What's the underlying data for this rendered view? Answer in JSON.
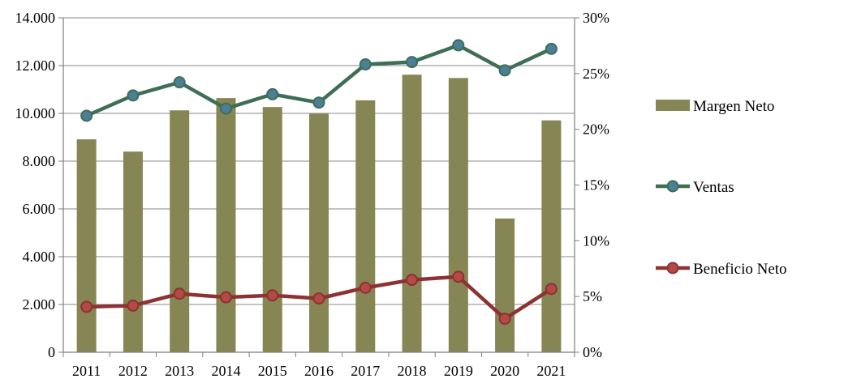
{
  "chart_data": {
    "type": "bar",
    "categories": [
      "2011",
      "2012",
      "2013",
      "2014",
      "2015",
      "2016",
      "2017",
      "2018",
      "2019",
      "2020",
      "2021"
    ],
    "title": "",
    "xlabel": "",
    "ylabel": "",
    "left_axis": {
      "ylim": [
        0,
        14000
      ],
      "ticks": [
        0,
        2000,
        4000,
        6000,
        8000,
        10000,
        12000,
        14000
      ],
      "tick_labels": [
        "0",
        "2.000",
        "4.000",
        "6.000",
        "8.000",
        "10.000",
        "12.000",
        "14.000"
      ]
    },
    "right_axis": {
      "ylim": [
        0,
        30
      ],
      "ticks": [
        0,
        5,
        10,
        15,
        20,
        25,
        30
      ],
      "tick_labels": [
        "0%",
        "5%",
        "10%",
        "15%",
        "20%",
        "25%",
        "30%"
      ]
    },
    "grid": true,
    "legend_position": "right",
    "series": [
      {
        "name": "Margen Neto",
        "type": "bar",
        "axis": "right",
        "unit": "%",
        "color": "#868655",
        "values": [
          19.1,
          18.0,
          21.7,
          22.8,
          22.0,
          21.4,
          22.6,
          24.9,
          24.6,
          12.0,
          20.8
        ]
      },
      {
        "name": "Ventas",
        "type": "line",
        "axis": "left",
        "color": "#3E6E55",
        "marker_color": "#4A7F97",
        "values": [
          9900,
          10750,
          11300,
          10200,
          10800,
          10450,
          12050,
          12150,
          12850,
          11800,
          12700
        ]
      },
      {
        "name": "Beneficio Neto",
        "type": "line",
        "axis": "left",
        "color": "#8C3232",
        "marker_color": "#B34A45",
        "values": [
          1900,
          1950,
          2450,
          2300,
          2380,
          2250,
          2700,
          3030,
          3160,
          1400,
          2650
        ]
      }
    ]
  }
}
